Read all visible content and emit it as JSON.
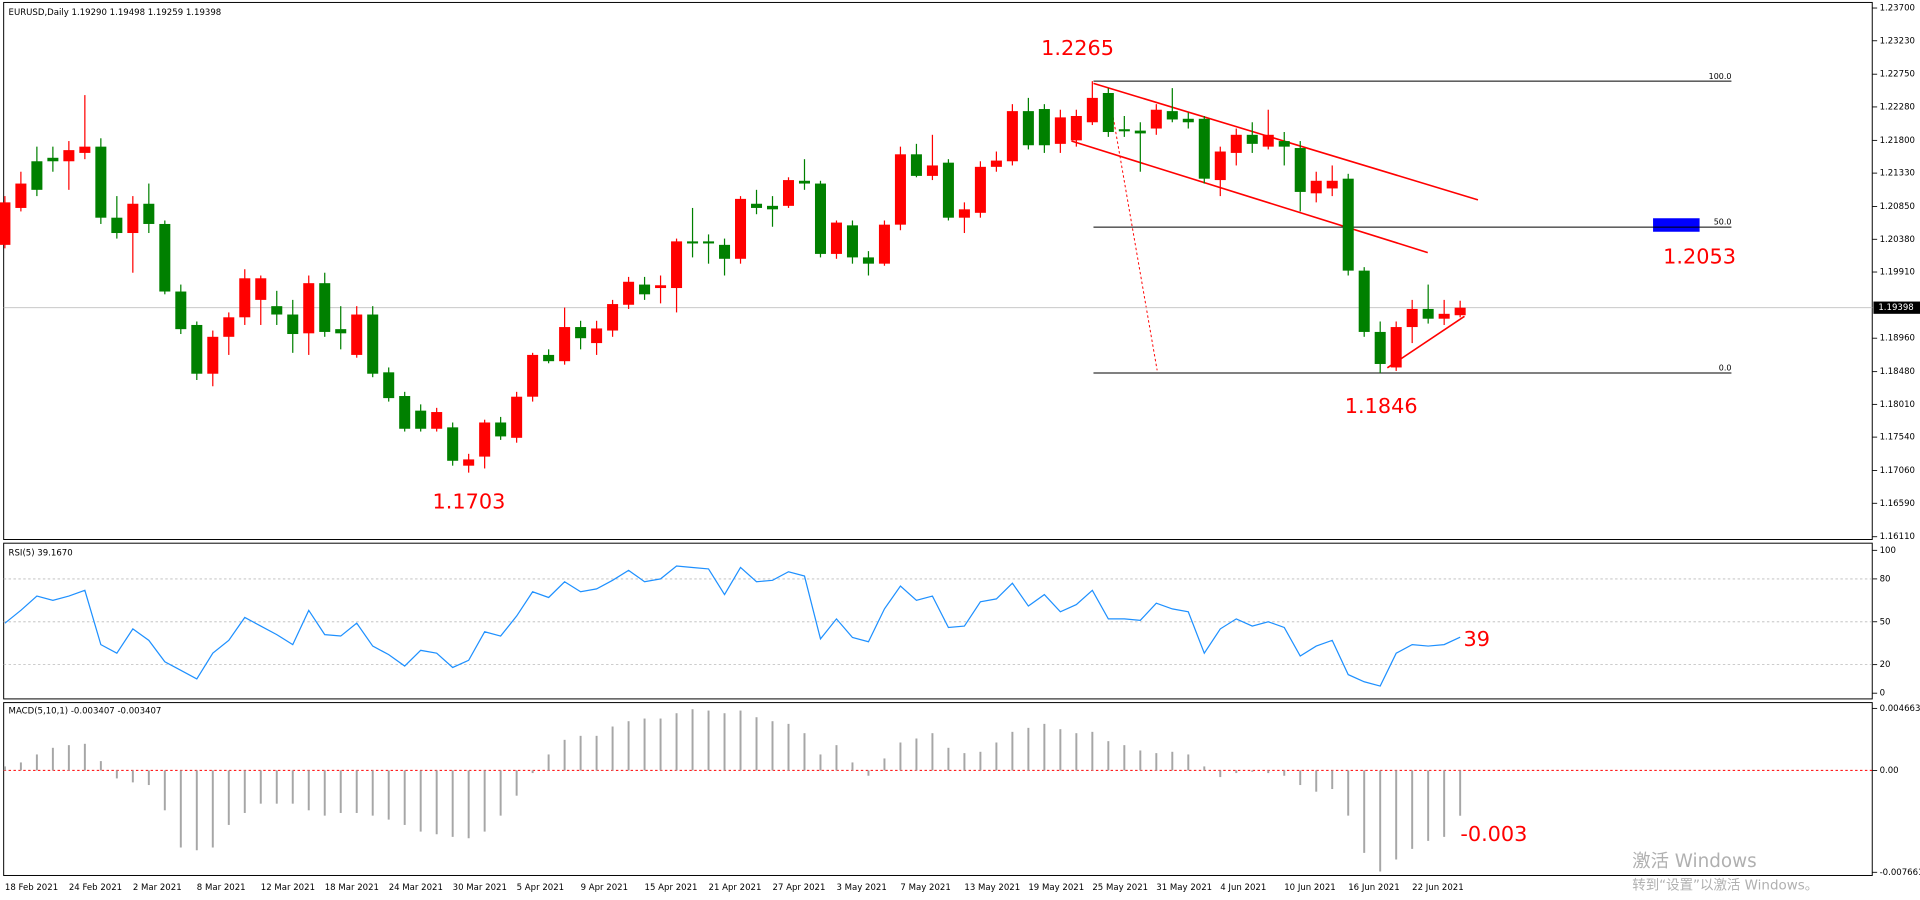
{
  "chart_data": [
    {
      "type": "candlestick",
      "title": "EURUSD,Daily  1.19290 1.19498 1.19259 1.19398",
      "categories": [
        "18 Feb 2021",
        null,
        null,
        null,
        "24 Feb 2021",
        null,
        null,
        null,
        "2 Mar 2021",
        null,
        null,
        null,
        "8 Mar 2021",
        null,
        null,
        null,
        "12 Mar 2021",
        null,
        null,
        null,
        "18 Mar 2021",
        null,
        null,
        null,
        "24 Mar 2021",
        null,
        null,
        null,
        "30 Mar 2021",
        null,
        null,
        null,
        "5 Apr 2021",
        null,
        null,
        null,
        "9 Apr 2021",
        null,
        null,
        null,
        "15 Apr 2021",
        null,
        null,
        null,
        "21 Apr 2021",
        null,
        null,
        null,
        "27 Apr 2021",
        null,
        null,
        null,
        "3 May 2021",
        null,
        null,
        null,
        "7 May 2021",
        null,
        null,
        null,
        "13 May 2021",
        null,
        null,
        null,
        "19 May 2021",
        null,
        null,
        null,
        "25 May 2021",
        null,
        null,
        null,
        "31 May 2021",
        null,
        null,
        null,
        "4 Jun 2021",
        null,
        null,
        null,
        "10 Jun 2021",
        null,
        null,
        null,
        "16 Jun 2021",
        null,
        null,
        null,
        "22 Jun 2021",
        null,
        null,
        null
      ],
      "open": [
        1.203,
        1.2083,
        1.215,
        1.2155,
        1.215,
        1.2162,
        1.2171,
        1.2069,
        1.2047,
        1.2089,
        1.206,
        1.1963,
        1.1915,
        1.1845,
        1.1898,
        1.1926,
        1.1951,
        1.1942,
        1.193,
        1.1903,
        1.1975,
        1.1909,
        1.1872,
        1.193,
        1.1847,
        1.1813,
        1.1792,
        1.1766,
        1.1768,
        1.1713,
        1.1726,
        1.1775,
        1.1753,
        1.1812,
        1.1872,
        1.1863,
        1.1912,
        1.1889,
        1.1907,
        1.1944,
        1.1973,
        1.1968,
        1.1968,
        1.2035,
        1.2035,
        1.203,
        1.201,
        1.2089,
        1.2086,
        1.2086,
        1.2122,
        1.2118,
        1.2017,
        1.2058,
        1.2012,
        1.2003,
        1.2059,
        1.216,
        1.2129,
        1.2148,
        1.2069,
        1.2076,
        1.2142,
        1.215,
        1.2222,
        1.2225,
        1.2175,
        1.218,
        1.2206,
        1.2248,
        1.2196,
        1.2194,
        1.2197,
        1.2222,
        1.2211,
        1.2211,
        1.2123,
        1.2162,
        1.2188,
        1.2171,
        1.2179,
        1.2169,
        1.2104,
        1.2111,
        1.2125,
        1.1993,
        1.1905,
        1.1854,
        1.1912,
        1.1938,
        1.1924,
        1.1929
      ],
      "high": [
        1.21,
        1.2135,
        1.2171,
        1.2171,
        1.2179,
        1.2245,
        1.2183,
        1.21,
        1.21,
        1.2118,
        1.2065,
        1.1973,
        1.192,
        1.1907,
        1.1933,
        1.1995,
        1.1986,
        1.1964,
        1.1951,
        1.1986,
        1.199,
        1.1942,
        1.1942,
        1.1942,
        1.1854,
        1.1819,
        1.1801,
        1.1796,
        1.1775,
        1.173,
        1.1779,
        1.1783,
        1.1819,
        1.1875,
        1.188,
        1.194,
        1.1921,
        1.1921,
        1.1951,
        1.1984,
        1.1984,
        1.1986,
        1.2039,
        1.2083,
        1.2045,
        1.2039,
        1.21,
        1.2109,
        1.21,
        1.2127,
        1.2153,
        1.2122,
        1.2065,
        1.2065,
        1.2021,
        1.2065,
        1.2171,
        1.2175,
        1.2188,
        1.2153,
        1.2091,
        1.215,
        1.2164,
        1.2232,
        1.2241,
        1.2232,
        1.2224,
        1.2224,
        1.2265,
        1.2255,
        1.2215,
        1.2206,
        1.2232,
        1.2255,
        1.222,
        1.2215,
        1.2171,
        1.2197,
        1.2206,
        1.2224,
        1.2192,
        1.2179,
        1.2135,
        1.2144,
        1.2132,
        1.1998,
        1.192,
        1.192,
        1.1951,
        1.1973,
        1.1951,
        1.19498
      ],
      "low": [
        1.2025,
        1.2078,
        1.21,
        1.2135,
        1.2109,
        1.2153,
        1.206,
        1.2039,
        1.199,
        1.2047,
        1.1959,
        1.1902,
        1.1836,
        1.1827,
        1.1872,
        1.1915,
        1.1915,
        1.1915,
        1.1875,
        1.1872,
        1.1898,
        1.188,
        1.1868,
        1.184,
        1.1805,
        1.1762,
        1.1762,
        1.1762,
        1.1713,
        1.1703,
        1.1709,
        1.175,
        1.1746,
        1.1805,
        1.186,
        1.1858,
        1.188,
        1.1872,
        1.1898,
        1.1938,
        1.1951,
        1.1946,
        1.1933,
        1.2012,
        1.2003,
        1.1986,
        1.2003,
        1.2074,
        1.2056,
        1.2083,
        1.2109,
        1.2012,
        1.201,
        1.2003,
        1.1986,
        1.2,
        1.2051,
        1.2127,
        1.2123,
        1.2065,
        1.2047,
        1.2069,
        1.2135,
        1.2144,
        1.2167,
        1.2162,
        1.2162,
        1.2171,
        1.2202,
        1.2185,
        1.2185,
        1.2135,
        1.2188,
        1.2206,
        1.2197,
        1.2118,
        1.21,
        1.2144,
        1.2162,
        1.2167,
        1.2144,
        1.2078,
        1.2091,
        1.21,
        1.1986,
        1.1898,
        1.1846,
        1.1849,
        1.1889,
        1.1917,
        1.1915,
        1.19259
      ],
      "close": [
        1.2091,
        1.2118,
        1.2109,
        1.215,
        1.2166,
        1.2171,
        1.2069,
        1.2047,
        1.2089,
        1.206,
        1.1963,
        1.1909,
        1.1845,
        1.1898,
        1.1926,
        1.1982,
        1.1982,
        1.193,
        1.1902,
        1.1975,
        1.1905,
        1.1903,
        1.193,
        1.1845,
        1.181,
        1.1766,
        1.1766,
        1.179,
        1.172,
        1.1722,
        1.1775,
        1.1755,
        1.1812,
        1.1872,
        1.1863,
        1.1912,
        1.1896,
        1.191,
        1.1945,
        1.1977,
        1.1959,
        1.1972,
        1.2035,
        1.2032,
        1.2032,
        1.201,
        1.2096,
        1.2083,
        1.2081,
        1.2123,
        1.2118,
        1.2017,
        1.2062,
        1.2012,
        1.2003,
        1.2059,
        1.216,
        1.2129,
        1.2144,
        1.2069,
        1.2081,
        1.2142,
        1.2151,
        1.2222,
        1.2173,
        1.2173,
        1.2213,
        1.2215,
        1.2241,
        1.2192,
        1.2193,
        1.219,
        1.2224,
        1.221,
        1.2206,
        1.2125,
        1.2164,
        1.2188,
        1.2175,
        1.2188,
        1.2171,
        1.2106,
        1.2122,
        1.2122,
        1.1993,
        1.1905,
        1.1859,
        1.1912,
        1.1938,
        1.1924,
        1.1931,
        1.19398
      ],
      "up_color": "#ff0000",
      "down_color": "#008000",
      "ylim": [
        1.1607,
        1.2378
      ],
      "yticks": [
        {
          "value": 1.237,
          "label": "1.23700"
        },
        {
          "value": 1.2323,
          "label": "1.23230"
        },
        {
          "value": 1.2275,
          "label": "1.22750"
        },
        {
          "value": 1.2228,
          "label": "1.22280"
        },
        {
          "value": 1.218,
          "label": "1.21800"
        },
        {
          "value": 1.2133,
          "label": "1.21330"
        },
        {
          "value": 1.2085,
          "label": "1.20850"
        },
        {
          "value": 1.2038,
          "label": "1.20380"
        },
        {
          "value": 1.1991,
          "label": "1.19910"
        },
        {
          "value": 1.1896,
          "label": "1.18960"
        },
        {
          "value": 1.1848,
          "label": "1.18480"
        },
        {
          "value": 1.1801,
          "label": "1.18010"
        },
        {
          "value": 1.1754,
          "label": "1.17540"
        },
        {
          "value": 1.1706,
          "label": "1.17060"
        },
        {
          "value": 1.1659,
          "label": "1.16590"
        },
        {
          "value": 1.1611,
          "label": "1.16110"
        }
      ],
      "last_price": {
        "value": 1.19398,
        "label": "1.19398"
      },
      "fibo": [
        {
          "label": "100.0",
          "value": 1.2265
        },
        {
          "label": "50.0",
          "value": 1.20555
        },
        {
          "label": "0.0",
          "value": 1.1846
        }
      ],
      "annotations": [
        1.2265,
        1.1703,
        1.1846,
        1.2053
      ]
    },
    {
      "type": "line",
      "title": "RSI(5) 39.1670",
      "color": "#1e90ff",
      "values": [
        49,
        58,
        68,
        65,
        68,
        72,
        34,
        28,
        45,
        37,
        22,
        16,
        10,
        28,
        37,
        53,
        47,
        41,
        34,
        58,
        41,
        40,
        49,
        33,
        27,
        19,
        30,
        28,
        18,
        23,
        43,
        40,
        54,
        71,
        67,
        78,
        71,
        73,
        79,
        86,
        78,
        80,
        89,
        88,
        87,
        69,
        88,
        78,
        79,
        85,
        82,
        38,
        52,
        39,
        36,
        59,
        75,
        65,
        68,
        46,
        47,
        64,
        66,
        77,
        61,
        69,
        57,
        62,
        72,
        52,
        52,
        51,
        63,
        59,
        57,
        28,
        45,
        52,
        47,
        50,
        46,
        26,
        33,
        37,
        13,
        8,
        5,
        28,
        34,
        33,
        34,
        39.167
      ],
      "ylim": [
        -4,
        105
      ],
      "yticks": [
        100,
        80,
        50,
        20,
        0
      ],
      "levels": [
        80,
        50,
        20
      ],
      "annotation": 39
    },
    {
      "type": "bar",
      "title": "MACD(5,10,1) -0.003407 -0.003407",
      "color": "#a6a6a6",
      "values": [
        0.0003,
        0.0006,
        0.0012,
        0.0017,
        0.0019,
        0.002,
        0.0007,
        -0.0006,
        -0.0009,
        -0.0011,
        -0.003,
        -0.0058,
        -0.006,
        -0.0058,
        -0.0041,
        -0.0032,
        -0.0025,
        -0.0025,
        -0.0025,
        -0.003,
        -0.0034,
        -0.0032,
        -0.0032,
        -0.0034,
        -0.0037,
        -0.0041,
        -0.0046,
        -0.0048,
        -0.005,
        -0.0051,
        -0.0046,
        -0.0034,
        -0.0019,
        -0.0002,
        0.0012,
        0.0023,
        0.0026,
        0.0026,
        0.0033,
        0.0037,
        0.0039,
        0.0039,
        0.0043,
        0.0046,
        0.0045,
        0.0043,
        0.0045,
        0.004,
        0.0037,
        0.0035,
        0.0028,
        0.0012,
        0.0019,
        0.0006,
        -0.0004,
        0.0009,
        0.0021,
        0.0024,
        0.0028,
        0.0017,
        0.0013,
        0.0014,
        0.0021,
        0.0029,
        0.0032,
        0.0035,
        0.0031,
        0.0028,
        0.0029,
        0.0022,
        0.0019,
        0.0015,
        0.0013,
        0.0014,
        0.0012,
        0.0003,
        -0.0005,
        -0.0002,
        -0.0001,
        -0.0002,
        -0.0004,
        -0.0011,
        -0.0016,
        -0.0014,
        -0.0034,
        -0.0062,
        -0.0076,
        -0.0067,
        -0.0059,
        -0.0053,
        -0.005,
        -0.003407
      ],
      "ylim": [
        -0.0079,
        0.0051
      ],
      "yticks": [
        0.004663,
        {
          "value": 0,
          "label": "0.00"
        },
        -0.007661
      ],
      "annotation": -0.003
    }
  ],
  "watermark": [
    "激活 Windows",
    "转到“设置”以激活 Windows。"
  ]
}
